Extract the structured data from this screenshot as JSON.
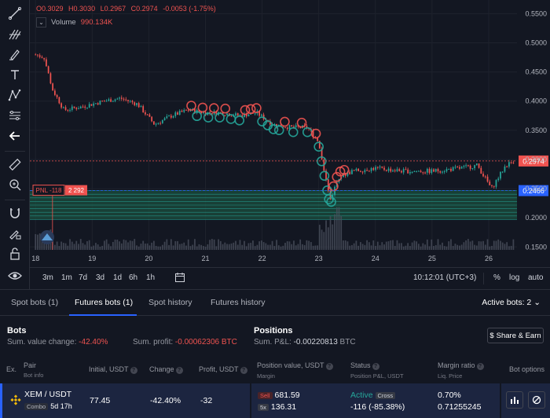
{
  "ohlc": {
    "open": "O0.3029",
    "high": "H0.3030",
    "low": "L0.2967",
    "close": "C0.2974",
    "change": "-0.0053 (-1.75%)"
  },
  "volume": {
    "label": "Volume",
    "value": "990.134K"
  },
  "price_axis": {
    "ticks": [
      "0.5500",
      "0.5000",
      "0.4500",
      "0.4000",
      "0.3500",
      "0.3000",
      "0.2500",
      "0.2000",
      "0.1500"
    ],
    "current_price": "0.2974",
    "entry_price": "0.2466"
  },
  "pnl_marker": {
    "label": "PNL -118",
    "value": "2 292"
  },
  "time_axis": {
    "ticks": [
      "18",
      "19",
      "20",
      "21",
      "22",
      "23",
      "24",
      "25",
      "26"
    ]
  },
  "bottom_bar": {
    "ranges": [
      "3m",
      "1m",
      "7d",
      "3d",
      "1d",
      "6h",
      "1h"
    ],
    "clock": "10:12:01 (UTC+3)",
    "percent": "%",
    "log": "log",
    "auto": "auto"
  },
  "tabs": {
    "items": [
      "Spot bots (1)",
      "Futures bots (1)",
      "Spot history",
      "Futures history"
    ],
    "active_bots": "Active bots: 2"
  },
  "summary": {
    "bots_title": "Bots",
    "sum_value_change_label": "Sum. value change:",
    "sum_value_change": "-42.40%",
    "sum_profit_label": "Sum. profit:",
    "sum_profit": "-0.00062306",
    "sum_profit_unit": "BTC",
    "positions_title": "Positions",
    "sum_pnl_label": "Sum. P&L:",
    "sum_pnl": "-0.00220813",
    "sum_pnl_unit": "BTC",
    "share_button": "Share & Earn"
  },
  "table": {
    "headers": {
      "ex": "Ex.",
      "pair": "Pair",
      "pair_sub": "Bot info",
      "initial": "Initial, USDT",
      "change": "Change",
      "profit": "Profit, USDT",
      "position_value": "Position value, USDT",
      "position_value_sub": "Margin",
      "status": "Status",
      "status_sub": "Position P&L, USDT",
      "margin_ratio": "Margin ratio",
      "margin_ratio_sub": "Liq. Price",
      "options": "Bot options"
    },
    "row": {
      "pair": "XEM / USDT",
      "bot_type": "Combo",
      "age": "5d 17h",
      "initial": "77.45",
      "change": "-42.40%",
      "profit": "-32",
      "side": "Sell",
      "leverage": "5x",
      "position_value": "681.59",
      "margin": "136.31",
      "status": "Active",
      "margin_mode": "Cross",
      "position_pnl": "-116 (-85.38%)",
      "margin_ratio": "0.70%",
      "liq_price": "0.71255245"
    }
  },
  "colors": {
    "up": "#26a69a",
    "down": "#ef5350",
    "accent": "#2962ff",
    "background": "#131722"
  },
  "chart_data": {
    "type": "candlestick",
    "x_ticks": [
      "18",
      "19",
      "20",
      "21",
      "22",
      "23",
      "24",
      "25",
      "26"
    ],
    "ylim": [
      0.145,
      0.56
    ],
    "close_series": [
      {
        "day": 18.0,
        "close": 0.48
      },
      {
        "day": 18.15,
        "close": 0.475
      },
      {
        "day": 18.3,
        "close": 0.42
      },
      {
        "day": 18.5,
        "close": 0.385
      },
      {
        "day": 18.8,
        "close": 0.39
      },
      {
        "day": 19.2,
        "close": 0.4
      },
      {
        "day": 19.5,
        "close": 0.405
      },
      {
        "day": 19.8,
        "close": 0.395
      },
      {
        "day": 20.1,
        "close": 0.36
      },
      {
        "day": 20.4,
        "close": 0.375
      },
      {
        "day": 20.7,
        "close": 0.385
      },
      {
        "day": 21.0,
        "close": 0.38
      },
      {
        "day": 21.3,
        "close": 0.38
      },
      {
        "day": 21.6,
        "close": 0.375
      },
      {
        "day": 21.9,
        "close": 0.38
      },
      {
        "day": 22.2,
        "close": 0.36
      },
      {
        "day": 22.5,
        "close": 0.355
      },
      {
        "day": 22.8,
        "close": 0.355
      },
      {
        "day": 23.0,
        "close": 0.33
      },
      {
        "day": 23.1,
        "close": 0.28
      },
      {
        "day": 23.2,
        "close": 0.23
      },
      {
        "day": 23.35,
        "close": 0.27
      },
      {
        "day": 23.6,
        "close": 0.28
      },
      {
        "day": 24.0,
        "close": 0.285
      },
      {
        "day": 24.5,
        "close": 0.28
      },
      {
        "day": 25.0,
        "close": 0.28
      },
      {
        "day": 25.5,
        "close": 0.285
      },
      {
        "day": 25.8,
        "close": 0.29
      },
      {
        "day": 26.05,
        "close": 0.25
      },
      {
        "day": 26.3,
        "close": 0.29
      },
      {
        "day": 26.45,
        "close": 0.2974
      }
    ]
  }
}
